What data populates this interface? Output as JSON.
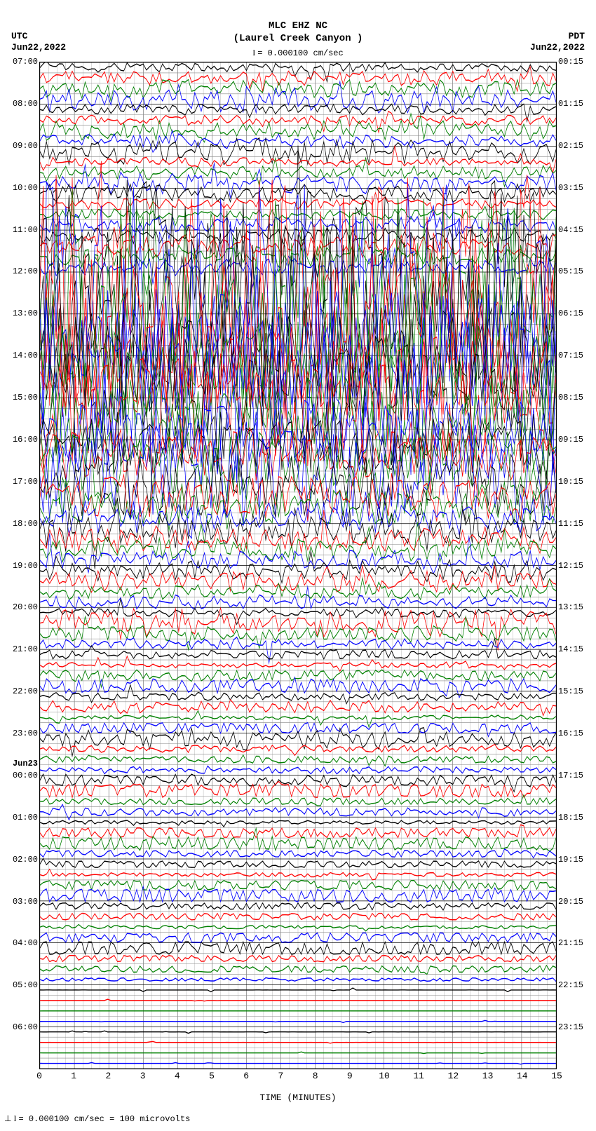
{
  "header": {
    "station": "MLC EHZ NC",
    "location": "(Laurel Creek Canyon )",
    "scale_note": "= 0.000100 cm/sec"
  },
  "corners": {
    "tl_tz": "UTC",
    "tl_date": "Jun22,2022",
    "tr_tz": "PDT",
    "tr_date": "Jun22,2022"
  },
  "plot": {
    "x_min": 0,
    "x_max": 15,
    "x_label": "TIME (MINUTES)",
    "x_ticks": [
      0,
      1,
      2,
      3,
      4,
      5,
      6,
      7,
      8,
      9,
      10,
      11,
      12,
      13,
      14,
      15
    ],
    "minor_per_major": 4,
    "background": "#ffffff",
    "grid_major_color": "#000000",
    "grid_minor_color": "#999999",
    "trace_colors": [
      "#000000",
      "#ff0000",
      "#008000",
      "#0000ff"
    ],
    "row_count": 96,
    "hour_rows": 24,
    "left_hours": [
      "07:00",
      "08:00",
      "09:00",
      "10:00",
      "11:00",
      "12:00",
      "13:00",
      "14:00",
      "15:00",
      "16:00",
      "17:00",
      "18:00",
      "19:00",
      "20:00",
      "21:00",
      "22:00",
      "23:00",
      "00:00",
      "01:00",
      "02:00",
      "03:00",
      "04:00",
      "05:00",
      "06:00"
    ],
    "right_hours": [
      "00:15",
      "01:15",
      "02:15",
      "03:15",
      "04:15",
      "05:15",
      "06:15",
      "07:15",
      "08:15",
      "09:15",
      "10:15",
      "11:15",
      "12:15",
      "13:15",
      "14:15",
      "15:15",
      "16:15",
      "17:15",
      "18:15",
      "19:15",
      "20:15",
      "21:15",
      "22:15",
      "23:15"
    ],
    "day_break": {
      "index": 17,
      "label": "Jun23"
    }
  },
  "activity": [
    {
      "row": 0,
      "amp": 0.35,
      "noise": 0.25,
      "drift": -0.1
    },
    {
      "row": 1,
      "amp": 0.4,
      "noise": 0.3,
      "drift": 0.15
    },
    {
      "row": 2,
      "amp": 0.45,
      "noise": 0.35,
      "drift": -0.2
    },
    {
      "row": 3,
      "amp": 0.6,
      "noise": 0.6,
      "drift": 0.2
    },
    {
      "row": 4,
      "amp": 0.4,
      "noise": 0.3,
      "drift": -0.1
    },
    {
      "row": 5,
      "amp": 0.35,
      "noise": 0.25,
      "drift": 0.1
    },
    {
      "row": 6,
      "amp": 0.55,
      "noise": 0.5,
      "drift": -0.15
    },
    {
      "row": 7,
      "amp": 0.5,
      "noise": 0.4,
      "drift": 0.1
    },
    {
      "row": 8,
      "amp": 0.6,
      "noise": 0.55,
      "drift": -0.2
    },
    {
      "row": 9,
      "amp": 0.45,
      "noise": 0.35,
      "drift": 0.05
    },
    {
      "row": 10,
      "amp": 0.5,
      "noise": 0.4,
      "drift": -0.1
    },
    {
      "row": 11,
      "amp": 0.55,
      "noise": 0.5,
      "drift": 0.15
    },
    {
      "row": 12,
      "amp": 0.45,
      "noise": 0.35,
      "drift": 0.2
    },
    {
      "row": 13,
      "amp": 0.5,
      "noise": 0.4,
      "drift": -0.05
    },
    {
      "row": 14,
      "amp": 0.4,
      "noise": 0.3,
      "drift": 0.1
    },
    {
      "row": 15,
      "amp": 0.45,
      "noise": 0.4,
      "drift": -0.15
    },
    {
      "row": 16,
      "amp": 0.55,
      "noise": 0.5,
      "drift": 0.1
    },
    {
      "row": 17,
      "amp": 0.5,
      "noise": 0.45,
      "drift": -0.2
    },
    {
      "row": 18,
      "amp": 0.6,
      "noise": 0.55,
      "drift": 0.15
    },
    {
      "row": 19,
      "amp": 0.55,
      "noise": 0.5,
      "drift": -0.1
    },
    {
      "row": 20,
      "amp": 2.2,
      "noise": 1.9,
      "drift": 0.1
    },
    {
      "row": 21,
      "amp": 2.4,
      "noise": 2.1,
      "drift": -0.05
    },
    {
      "row": 22,
      "amp": 2.3,
      "noise": 2.0,
      "drift": 0.15
    },
    {
      "row": 23,
      "amp": 2.5,
      "noise": 2.2,
      "drift": -0.1
    },
    {
      "row": 24,
      "amp": 2.1,
      "noise": 1.8,
      "drift": 0.2
    },
    {
      "row": 25,
      "amp": 2.0,
      "noise": 1.7,
      "drift": -0.15
    },
    {
      "row": 26,
      "amp": 1.9,
      "noise": 1.6,
      "drift": 0.1
    },
    {
      "row": 27,
      "amp": 1.8,
      "noise": 1.5,
      "drift": -0.05
    },
    {
      "row": 28,
      "amp": 1.7,
      "noise": 1.4,
      "drift": 0.15
    },
    {
      "row": 29,
      "amp": 1.6,
      "noise": 1.35,
      "drift": -0.2
    },
    {
      "row": 30,
      "amp": 1.8,
      "noise": 1.5,
      "drift": 0.1
    },
    {
      "row": 31,
      "amp": 2.2,
      "noise": 1.9,
      "drift": -0.1
    },
    {
      "row": 32,
      "amp": 1.9,
      "noise": 1.6,
      "drift": 0.05
    },
    {
      "row": 33,
      "amp": 1.7,
      "noise": 1.4,
      "drift": -0.15
    },
    {
      "row": 34,
      "amp": 1.5,
      "noise": 1.2,
      "drift": 0.2
    },
    {
      "row": 35,
      "amp": 1.4,
      "noise": 1.1,
      "drift": -0.1
    },
    {
      "row": 36,
      "amp": 1.3,
      "noise": 1.0,
      "drift": 0.15
    },
    {
      "row": 37,
      "amp": 1.2,
      "noise": 0.95,
      "drift": -0.05
    },
    {
      "row": 38,
      "amp": 1.4,
      "noise": 1.1,
      "drift": 0.1
    },
    {
      "row": 39,
      "amp": 1.6,
      "noise": 1.3,
      "drift": -0.2
    },
    {
      "row": 40,
      "amp": 1.3,
      "noise": 1.0,
      "drift": 0.15
    },
    {
      "row": 41,
      "amp": 1.1,
      "noise": 0.85,
      "drift": -0.1
    },
    {
      "row": 42,
      "amp": 1.0,
      "noise": 0.75,
      "drift": 0.05
    },
    {
      "row": 43,
      "amp": 0.9,
      "noise": 0.65,
      "drift": -0.15
    },
    {
      "row": 44,
      "amp": 0.95,
      "noise": 0.7,
      "drift": 0.2
    },
    {
      "row": 45,
      "amp": 0.85,
      "noise": 0.6,
      "drift": -0.1
    },
    {
      "row": 46,
      "amp": 0.8,
      "noise": 0.55,
      "drift": 0.1
    },
    {
      "row": 47,
      "amp": 0.75,
      "noise": 0.5,
      "drift": -0.05
    },
    {
      "row": 48,
      "amp": 0.7,
      "noise": 0.45,
      "drift": 0.15
    },
    {
      "row": 49,
      "amp": 0.65,
      "noise": 0.4,
      "drift": -0.2
    },
    {
      "row": 50,
      "amp": 0.6,
      "noise": 0.38,
      "drift": 0.1
    },
    {
      "row": 51,
      "amp": 0.55,
      "noise": 0.35,
      "drift": -0.1
    },
    {
      "row": 52,
      "amp": 0.5,
      "noise": 0.32,
      "drift": 0.05
    },
    {
      "row": 53,
      "amp": 0.85,
      "noise": 0.6,
      "drift": -0.15
    },
    {
      "row": 54,
      "amp": 0.45,
      "noise": 0.28,
      "drift": 0.2
    },
    {
      "row": 55,
      "amp": 0.4,
      "noise": 0.25,
      "drift": -0.1
    },
    {
      "row": 56,
      "amp": 0.38,
      "noise": 0.23,
      "drift": 0.1
    },
    {
      "row": 57,
      "amp": 0.35,
      "noise": 0.21,
      "drift": -0.05
    },
    {
      "row": 58,
      "amp": 0.33,
      "noise": 0.19,
      "drift": 0.15
    },
    {
      "row": 59,
      "amp": 0.3,
      "noise": 0.18,
      "drift": -0.2
    },
    {
      "row": 60,
      "amp": 0.28,
      "noise": 0.16,
      "drift": 0.1
    },
    {
      "row": 61,
      "amp": 0.5,
      "noise": 0.35,
      "drift": -0.1
    },
    {
      "row": 62,
      "amp": 0.26,
      "noise": 0.15,
      "drift": 0.05
    },
    {
      "row": 63,
      "amp": 0.24,
      "noise": 0.14,
      "drift": -0.15
    },
    {
      "row": 64,
      "amp": 0.55,
      "noise": 0.4,
      "drift": 0.2
    },
    {
      "row": 65,
      "amp": 0.22,
      "noise": 0.13,
      "drift": -0.1
    },
    {
      "row": 66,
      "amp": 0.2,
      "noise": 0.12,
      "drift": 0.1
    },
    {
      "row": 67,
      "amp": 0.4,
      "noise": 0.28,
      "drift": -0.05
    },
    {
      "row": 68,
      "amp": 0.35,
      "noise": 0.24,
      "drift": 0.15
    },
    {
      "row": 69,
      "amp": 0.18,
      "noise": 0.11,
      "drift": -0.2
    },
    {
      "row": 70,
      "amp": 0.16,
      "noise": 0.1,
      "drift": 0.1
    },
    {
      "row": 71,
      "amp": 0.3,
      "noise": 0.2,
      "drift": -0.1
    },
    {
      "row": 72,
      "amp": 0.15,
      "noise": 0.09,
      "drift": 0.05
    },
    {
      "row": 73,
      "amp": 0.14,
      "noise": 0.08,
      "drift": -0.15
    },
    {
      "row": 74,
      "amp": 0.25,
      "noise": 0.17,
      "drift": 0.2
    },
    {
      "row": 75,
      "amp": 0.13,
      "noise": 0.08,
      "drift": -0.1
    },
    {
      "row": 76,
      "amp": 0.12,
      "noise": 0.07,
      "drift": 0.1
    },
    {
      "row": 77,
      "amp": 0.2,
      "noise": 0.14,
      "drift": -0.05
    },
    {
      "row": 78,
      "amp": 0.11,
      "noise": 0.07,
      "drift": 0.15
    },
    {
      "row": 79,
      "amp": 0.1,
      "noise": 0.06,
      "drift": -0.2
    },
    {
      "row": 80,
      "amp": 0.1,
      "noise": 0.06,
      "drift": 0.1
    },
    {
      "row": 81,
      "amp": 0.15,
      "noise": 0.1,
      "drift": -0.1
    },
    {
      "row": 82,
      "amp": 0.09,
      "noise": 0.05,
      "drift": 0.05
    },
    {
      "row": 83,
      "amp": 0.08,
      "noise": 0.05,
      "drift": -0.15
    },
    {
      "row": 84,
      "amp": 0.08,
      "noise": 0.05,
      "drift": 0.2
    },
    {
      "row": 85,
      "amp": 0.07,
      "noise": 0.04,
      "drift": -0.1
    },
    {
      "row": 86,
      "amp": 0.07,
      "noise": 0.04,
      "drift": 0.1
    },
    {
      "row": 87,
      "amp": 0.06,
      "noise": 0.04,
      "drift": -0.05
    },
    {
      "row": 88,
      "amp": 0.06,
      "noise": 0.04,
      "drift": 0
    },
    {
      "row": 89,
      "amp": 0.05,
      "noise": 0.03,
      "drift": 0
    },
    {
      "row": 90,
      "amp": 0.05,
      "noise": 0.03,
      "drift": 0
    },
    {
      "row": 91,
      "amp": 0.05,
      "noise": 0.03,
      "drift": 0
    },
    {
      "row": 92,
      "amp": 0.04,
      "noise": 0.02,
      "drift": 0
    },
    {
      "row": 93,
      "amp": 0.04,
      "noise": 0.02,
      "drift": 0
    },
    {
      "row": 94,
      "amp": 0.04,
      "noise": 0.02,
      "drift": 0
    },
    {
      "row": 95,
      "amp": 0.03,
      "noise": 0.02,
      "drift": 0
    }
  ],
  "footer": {
    "text": "= 0.000100 cm/sec =   100 microvolts"
  }
}
